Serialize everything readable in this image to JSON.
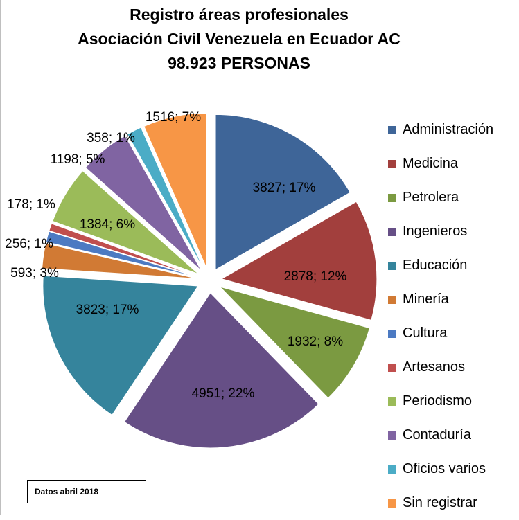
{
  "chart_data": {
    "type": "pie",
    "title_lines": [
      "Registro áreas profesionales",
      "Asociación Civil Venezuela en Ecuador AC",
      "98.923 PERSONAS"
    ],
    "categories": [
      "Administración",
      "Medicina",
      "Petrolera",
      "Ingenieros",
      "Educación",
      "Minería",
      "Cultura",
      "Artesanos",
      "Periodismo",
      "Contaduría",
      "Oficios varios",
      "Sin registrar"
    ],
    "values": [
      3827,
      2878,
      1932,
      4951,
      3823,
      593,
      256,
      178,
      1384,
      1198,
      358,
      1516
    ],
    "percents": [
      "17%",
      "12%",
      "8%",
      "22%",
      "17%",
      "3%",
      "1%",
      "1%",
      "6%",
      "5%",
      "1%",
      "7%"
    ],
    "data_labels": [
      "3827; 17%",
      "2878; 12%",
      "1932; 8%",
      "4951; 22%",
      "3823; 17%",
      "593; 3%",
      "256; 1%",
      "178; 1%",
      "1384; 6%",
      "1198; 5%",
      "358; 1%",
      "1516; 7%"
    ],
    "colors": [
      "#3e6598",
      "#a23f3d",
      "#7b9a41",
      "#664f86",
      "#35849c",
      "#d17a34",
      "#4c7ac2",
      "#c04f4e",
      "#9bbb59",
      "#8064a2",
      "#4bacc6",
      "#f79646"
    ],
    "exploded": true,
    "legend_position": "right"
  },
  "note": "Datos abril 2018"
}
